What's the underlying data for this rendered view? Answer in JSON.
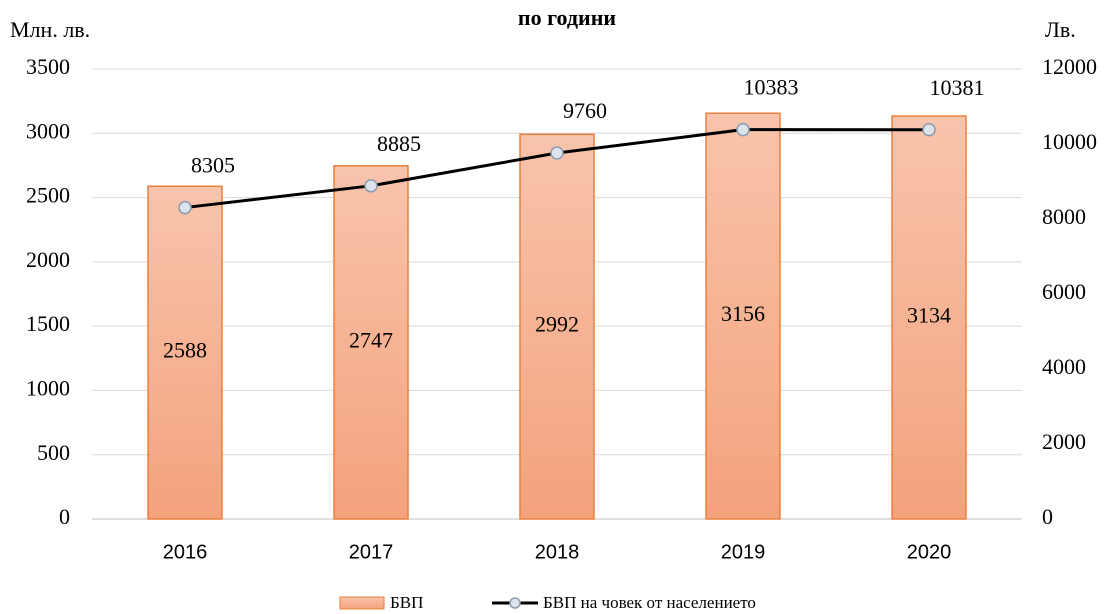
{
  "chart_data": {
    "type": "bar+line",
    "title": "по години",
    "y_label": "Млн. лв.",
    "y2_label": "Лв.",
    "categories": [
      "2016",
      "2017",
      "2018",
      "2019",
      "2020"
    ],
    "series": [
      {
        "name": "БВП",
        "type": "bar",
        "color": "#f4a580",
        "values": [
          2588,
          2747,
          2992,
          3156,
          3134
        ]
      },
      {
        "name": "БВП на човек от населението",
        "type": "line",
        "axis": "y2",
        "color": "#000000",
        "values": [
          8305,
          8885,
          9760,
          10383,
          10381
        ]
      }
    ],
    "ylim": [
      0,
      3500
    ],
    "yticks": [
      0,
      500,
      1000,
      1500,
      2000,
      2500,
      3000,
      3500
    ],
    "y2lim": [
      0,
      12000
    ],
    "y2ticks": [
      0,
      2000,
      4000,
      6000,
      8000,
      10000,
      12000
    ],
    "grid": true,
    "legend": "bottom"
  }
}
